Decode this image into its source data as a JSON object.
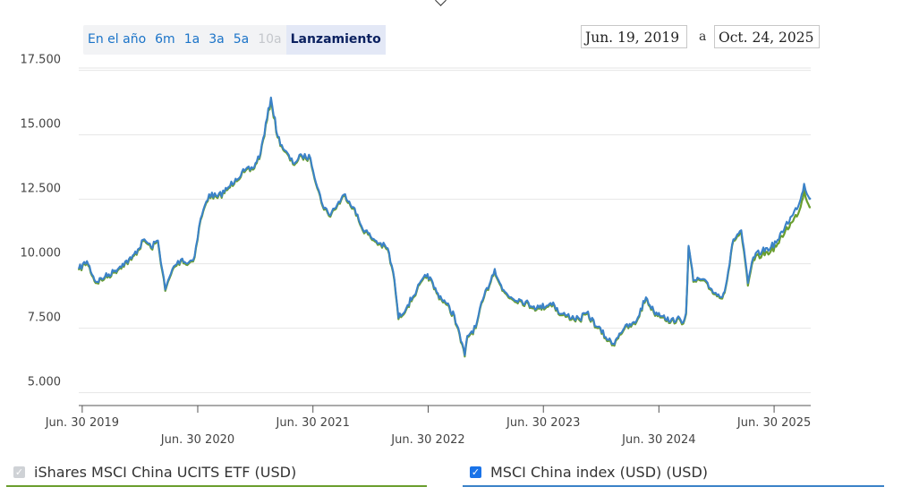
{
  "range_selector": {
    "buttons": [
      {
        "label": "En el año",
        "state": "enabled"
      },
      {
        "label": "6m",
        "state": "enabled"
      },
      {
        "label": "1a",
        "state": "enabled"
      },
      {
        "label": "3a",
        "state": "enabled"
      },
      {
        "label": "5a",
        "state": "enabled"
      },
      {
        "label": "10a",
        "state": "disabled"
      },
      {
        "label": "Lanzamiento",
        "state": "selected"
      }
    ]
  },
  "date_range": {
    "from": "Jun. 19, 2019",
    "separator": "a",
    "to": "Oct. 24, 2025"
  },
  "legend": {
    "etf_label": "iShares MSCI China UCITS ETF (USD)",
    "index_label": "MSCI China index (USD) (USD)",
    "etf_color": "#6a9e2e",
    "index_color": "#3b82c8"
  },
  "chart_data": {
    "type": "line",
    "title": "",
    "xlabel": "",
    "ylabel": "",
    "ylim": [
      4500,
      17800
    ],
    "xlim": [
      "2019-06-19",
      "2025-10-24"
    ],
    "grid": true,
    "yticks": [
      5000,
      7500,
      10000,
      12500,
      15000,
      17500
    ],
    "ytick_labels": [
      "5.000",
      "7.500",
      "10.000",
      "12.500",
      "15.000",
      "17.500"
    ],
    "xticks": [
      {
        "date": "2019-06-30",
        "label": "Jun. 30 2019",
        "row": 1
      },
      {
        "date": "2020-06-30",
        "label": "Jun. 30 2020",
        "row": 2
      },
      {
        "date": "2021-06-30",
        "label": "Jun. 30 2021",
        "row": 1
      },
      {
        "date": "2022-06-30",
        "label": "Jun. 30 2022",
        "row": 2
      },
      {
        "date": "2023-06-30",
        "label": "Jun. 30 2023",
        "row": 1
      },
      {
        "date": "2024-06-30",
        "label": "Jun. 30 2024",
        "row": 2
      },
      {
        "date": "2025-06-30",
        "label": "Jun. 30 2025",
        "row": 1
      }
    ],
    "series": [
      {
        "name": "iShares MSCI China UCITS ETF (USD)",
        "color": "#6a9e2e",
        "x": [
          "2019-06-19",
          "2019-07-15",
          "2019-08-12",
          "2019-09-10",
          "2019-10-08",
          "2019-11-05",
          "2019-12-03",
          "2020-01-13",
          "2020-02-03",
          "2020-02-25",
          "2020-03-19",
          "2020-04-15",
          "2020-05-12",
          "2020-05-28",
          "2020-06-20",
          "2020-07-09",
          "2020-08-05",
          "2020-09-01",
          "2020-10-01",
          "2020-10-28",
          "2020-11-25",
          "2020-12-22",
          "2021-01-15",
          "2021-02-17",
          "2021-03-10",
          "2021-04-01",
          "2021-04-28",
          "2021-05-26",
          "2021-06-22",
          "2021-07-27",
          "2021-08-20",
          "2021-09-15",
          "2021-10-10",
          "2021-11-05",
          "2021-12-01",
          "2021-12-30",
          "2022-01-26",
          "2022-02-22",
          "2022-03-15",
          "2022-03-28",
          "2022-04-26",
          "2022-05-25",
          "2022-06-28",
          "2022-07-27",
          "2022-08-24",
          "2022-09-21",
          "2022-10-24",
          "2022-11-01",
          "2022-11-28",
          "2022-12-20",
          "2023-01-27",
          "2023-02-20",
          "2023-03-20",
          "2023-04-18",
          "2023-05-31",
          "2023-06-16",
          "2023-07-31",
          "2023-08-21",
          "2023-09-13",
          "2023-10-23",
          "2023-11-14",
          "2023-12-19",
          "2024-01-22",
          "2024-02-06",
          "2024-02-26",
          "2024-03-12",
          "2024-04-16",
          "2024-05-20",
          "2024-06-14",
          "2024-07-16",
          "2024-08-05",
          "2024-08-27",
          "2024-09-11",
          "2024-09-24",
          "2024-10-02",
          "2024-10-17",
          "2024-11-13",
          "2024-12-10",
          "2025-01-13",
          "2025-01-28",
          "2025-02-21",
          "2025-03-18",
          "2025-04-08",
          "2025-04-25",
          "2025-05-23",
          "2025-06-20",
          "2025-07-15",
          "2025-08-05",
          "2025-08-29",
          "2025-09-22",
          "2025-10-03",
          "2025-10-17",
          "2025-10-24"
        ],
        "values": [
          9750,
          10050,
          9250,
          9450,
          9650,
          9950,
          10150,
          10900,
          10600,
          10850,
          8950,
          9850,
          10150,
          9950,
          10250,
          11700,
          12650,
          12550,
          12850,
          13250,
          13550,
          13650,
          14250,
          16350,
          14900,
          14350,
          13850,
          14150,
          14050,
          12350,
          11850,
          12250,
          12650,
          12150,
          11400,
          11000,
          10750,
          10550,
          9350,
          7850,
          8350,
          8950,
          9550,
          8850,
          8450,
          7950,
          6400,
          7150,
          7500,
          8550,
          9750,
          8950,
          8650,
          8550,
          8300,
          8250,
          8450,
          8000,
          7950,
          7800,
          8050,
          7500,
          7000,
          6850,
          7250,
          7450,
          7650,
          8650,
          8100,
          7950,
          7700,
          7850,
          7650,
          8050,
          10650,
          9300,
          9350,
          9000,
          8650,
          9100,
          10900,
          11200,
          9150,
          10150,
          10350,
          10500,
          10800,
          11300,
          11650,
          12200,
          12850,
          12300,
          12200
        ]
      },
      {
        "name": "MSCI China index (USD) (USD)",
        "color": "#3b82c8",
        "x": [
          "2019-06-19",
          "2019-07-15",
          "2019-08-12",
          "2019-09-10",
          "2019-10-08",
          "2019-11-05",
          "2019-12-03",
          "2020-01-13",
          "2020-02-03",
          "2020-02-25",
          "2020-03-19",
          "2020-04-15",
          "2020-05-12",
          "2020-05-28",
          "2020-06-20",
          "2020-07-09",
          "2020-08-05",
          "2020-09-01",
          "2020-10-01",
          "2020-10-28",
          "2020-11-25",
          "2020-12-22",
          "2021-01-15",
          "2021-02-17",
          "2021-03-10",
          "2021-04-01",
          "2021-04-28",
          "2021-05-26",
          "2021-06-22",
          "2021-07-27",
          "2021-08-20",
          "2021-09-15",
          "2021-10-10",
          "2021-11-05",
          "2021-12-01",
          "2021-12-30",
          "2022-01-26",
          "2022-02-22",
          "2022-03-15",
          "2022-03-28",
          "2022-04-26",
          "2022-05-25",
          "2022-06-28",
          "2022-07-27",
          "2022-08-24",
          "2022-09-21",
          "2022-10-24",
          "2022-11-01",
          "2022-11-28",
          "2022-12-20",
          "2023-01-27",
          "2023-02-20",
          "2023-03-20",
          "2023-04-18",
          "2023-05-31",
          "2023-06-16",
          "2023-07-31",
          "2023-08-21",
          "2023-09-13",
          "2023-10-23",
          "2023-11-14",
          "2023-12-19",
          "2024-01-22",
          "2024-02-06",
          "2024-02-26",
          "2024-03-12",
          "2024-04-16",
          "2024-05-20",
          "2024-06-14",
          "2024-07-16",
          "2024-08-05",
          "2024-08-27",
          "2024-09-11",
          "2024-09-24",
          "2024-10-02",
          "2024-10-17",
          "2024-11-13",
          "2024-12-10",
          "2025-01-13",
          "2025-01-28",
          "2025-02-21",
          "2025-03-18",
          "2025-04-08",
          "2025-04-25",
          "2025-05-23",
          "2025-06-20",
          "2025-07-15",
          "2025-08-05",
          "2025-08-29",
          "2025-09-22",
          "2025-10-03",
          "2025-10-17",
          "2025-10-24"
        ],
        "values": [
          9800,
          10100,
          9300,
          9500,
          9700,
          10000,
          10200,
          10950,
          10650,
          10900,
          9000,
          9900,
          10200,
          10000,
          10300,
          11750,
          12700,
          12600,
          12900,
          13300,
          13600,
          13700,
          14300,
          16450,
          14950,
          14400,
          13900,
          14200,
          14100,
          12400,
          11900,
          12300,
          12700,
          12200,
          11450,
          11050,
          10800,
          10600,
          9400,
          7900,
          8400,
          9000,
          9600,
          8900,
          8500,
          8000,
          6450,
          7200,
          7550,
          8600,
          9800,
          9000,
          8700,
          8600,
          8350,
          8300,
          8500,
          8050,
          8000,
          7850,
          8100,
          7550,
          7050,
          6900,
          7300,
          7500,
          7700,
          8700,
          8150,
          8000,
          7750,
          7900,
          7700,
          8100,
          10700,
          9350,
          9400,
          9050,
          8700,
          9150,
          10950,
          11300,
          9250,
          10250,
          10500,
          10650,
          10950,
          11500,
          11900,
          12500,
          13100,
          12600,
          12550
        ]
      }
    ]
  }
}
